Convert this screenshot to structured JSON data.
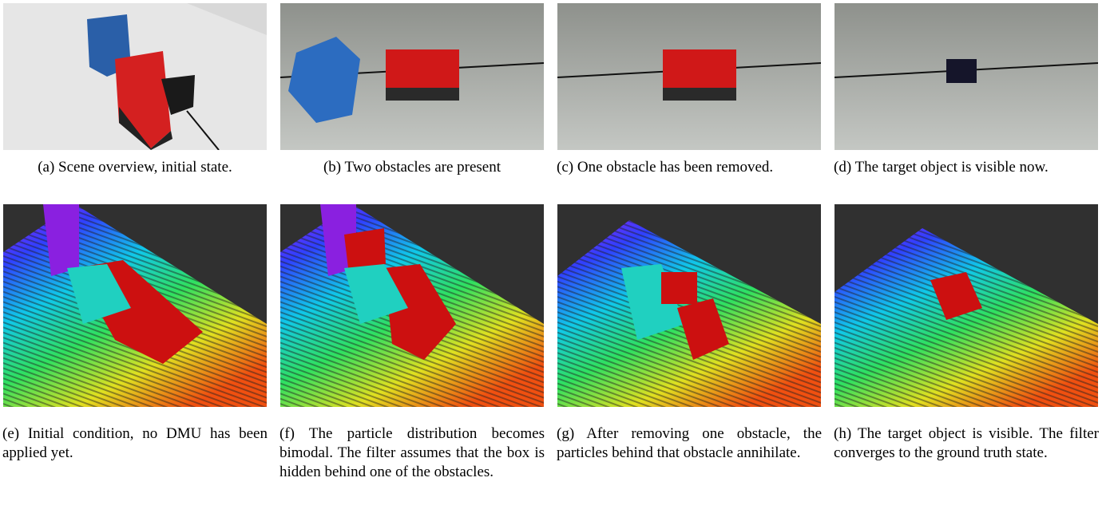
{
  "subfigures": [
    {
      "label": "(a)",
      "caption": "Scene overview, initial state."
    },
    {
      "label": "(b)",
      "caption": "Two obstacles are present"
    },
    {
      "label": "(c)",
      "caption": "One obstacle has been removed."
    },
    {
      "label": "(d)",
      "caption": "The target object is visible now."
    },
    {
      "label": "(e)",
      "caption": "Initial condition, no DMU has been applied yet."
    },
    {
      "label": "(f)",
      "caption": "The particle distribution becomes bimodal. The filter assumes that the box is hidden behind one of the obstacles."
    },
    {
      "label": "(g)",
      "caption": "After removing one obstacle, the particles behind that obstacle annihilate."
    },
    {
      "label": "(h)",
      "caption": "The target object is visible. The filter converges to the ground truth state."
    }
  ]
}
